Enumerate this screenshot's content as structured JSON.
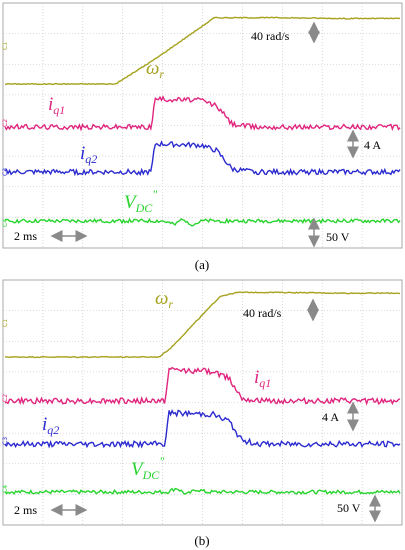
{
  "colors": {
    "omega": "#a6a21d",
    "iq1": "#e0257e",
    "iq2": "#2b2bd0",
    "vdc": "#28d42e",
    "grid": "#bdbdbd",
    "arrow": "#8a8a8a"
  },
  "chart_data": [
    {
      "type": "line",
      "subcaption": "(a)",
      "x_unit": "ms",
      "x_range": [
        0,
        20
      ],
      "grid": true,
      "scales": {
        "speed": "40 rad/s",
        "current": "4 A",
        "voltage": "50 V",
        "time": "2 ms"
      },
      "series": [
        {
          "name": "ω_r",
          "label_main": "ω",
          "label_sub": "r",
          "color": "#a6a21d",
          "x": [
            0,
            5.6,
            7.6,
            10.6,
            14,
            17,
            20
          ],
          "y": [
            0,
            0,
            32,
            85,
            85,
            84,
            84
          ],
          "noise": 0.6
        },
        {
          "name": "i_q1",
          "label_main": "i",
          "label_sub": "q1",
          "color": "#e0257e",
          "x": [
            0,
            7.4,
            7.6,
            10.0,
            10.4,
            10.7,
            11.5,
            12.6,
            20
          ],
          "y": [
            0,
            0,
            3.9,
            3.7,
            3.2,
            3.0,
            0.4,
            0,
            0
          ],
          "noise": 0.35
        },
        {
          "name": "i_q2",
          "label_main": "i",
          "label_sub": "q2",
          "color": "#2b2bd0",
          "x": [
            0,
            7.4,
            7.6,
            10.0,
            10.4,
            10.7,
            11.5,
            12.6,
            20
          ],
          "y": [
            0,
            0,
            3.9,
            3.7,
            3.2,
            3.0,
            0.4,
            0,
            0
          ],
          "noise": 0.35
        },
        {
          "name": "V_DC''",
          "label_main": "V",
          "label_sub": "DC",
          "label_sup": "\"",
          "color": "#28d42e",
          "x": [
            0,
            8.0,
            8.6,
            9.0,
            9.5,
            10.0,
            20
          ],
          "y": [
            0,
            0,
            -3,
            2,
            -3,
            0,
            0
          ],
          "noise": 1.4
        }
      ]
    },
    {
      "type": "line",
      "subcaption": "(b)",
      "x_unit": "ms",
      "x_range": [
        0,
        20
      ],
      "grid": true,
      "scales": {
        "speed": "40 rad/s",
        "current": "4 A",
        "voltage": "50 V",
        "time": "2 ms"
      },
      "series": [
        {
          "name": "ω_r",
          "label_main": "ω",
          "label_sub": "r",
          "color": "#a6a21d",
          "x": [
            0,
            7.8,
            8.4,
            10.9,
            11.8,
            14,
            17,
            20
          ],
          "y": [
            0,
            0,
            12,
            80,
            85,
            85,
            84,
            84
          ],
          "noise": 0.6
        },
        {
          "name": "i_q1",
          "label_main": "i",
          "label_sub": "q1",
          "color": "#e0257e",
          "x": [
            0,
            8.1,
            8.3,
            10.6,
            11.0,
            11.3,
            12.0,
            13.0,
            20
          ],
          "y": [
            0,
            0,
            3.9,
            3.7,
            3.1,
            3.0,
            0.4,
            0,
            0
          ],
          "noise": 0.35
        },
        {
          "name": "i_q2",
          "label_main": "i",
          "label_sub": "q2",
          "color": "#2b2bd0",
          "x": [
            0,
            8.1,
            8.3,
            10.6,
            11.0,
            11.3,
            12.0,
            13.0,
            20
          ],
          "y": [
            0,
            0,
            3.9,
            3.7,
            3.1,
            3.0,
            0.4,
            0,
            0
          ],
          "noise": 0.35
        },
        {
          "name": "V_DC''",
          "label_main": "V",
          "label_sub": "DC",
          "label_sup": "\"",
          "color": "#28d42e",
          "x": [
            0,
            8.2,
            8.7,
            9.2,
            9.7,
            10.2,
            20
          ],
          "y": [
            0,
            0,
            3,
            -2,
            2,
            0,
            0
          ],
          "noise": 1.4
        }
      ]
    }
  ]
}
